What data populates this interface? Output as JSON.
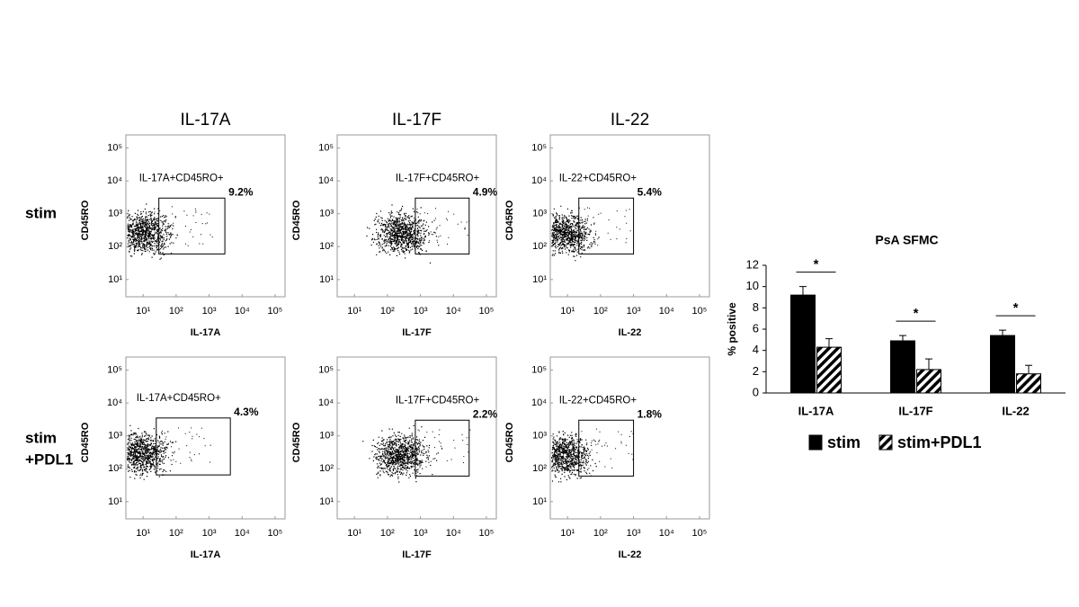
{
  "row_labels": [
    [
      "stim"
    ],
    [
      "stim",
      "+PDL1"
    ]
  ],
  "chart_data": [
    {
      "type": "flow",
      "title": "IL-17A",
      "xlabel": "IL-17A",
      "ylabel": "CD45RO",
      "log_scale": true,
      "xlim": [
        3,
        200000
      ],
      "ylim": [
        3,
        250000
      ],
      "xticks": [
        {
          "value": 10,
          "label": "10¹"
        },
        {
          "value": 100,
          "label": "10²"
        },
        {
          "value": 1000,
          "label": "10³"
        },
        {
          "value": 10000,
          "label": "10⁴"
        },
        {
          "value": 100000,
          "label": "10⁵"
        }
      ],
      "yticks": [
        {
          "value": 10,
          "label": "10¹"
        },
        {
          "value": 100,
          "label": "10²"
        },
        {
          "value": 1000,
          "label": "10³"
        },
        {
          "value": 10000,
          "label": "10⁴"
        },
        {
          "value": 100000,
          "label": "10⁵"
        }
      ],
      "gate_label": "IL-17A+CD45RO+",
      "gate_x": [
        30,
        3000
      ],
      "gate_y": [
        60,
        3000
      ],
      "values": [
        9.2
      ],
      "value_labels": [
        "9.2%"
      ]
    },
    {
      "type": "flow",
      "title": "IL-17F",
      "xlabel": "IL-17F",
      "ylabel": "CD45RO",
      "log_scale": true,
      "xlim": [
        3,
        200000
      ],
      "ylim": [
        3,
        250000
      ],
      "xticks": [
        {
          "value": 10,
          "label": "10¹"
        },
        {
          "value": 100,
          "label": "10²"
        },
        {
          "value": 1000,
          "label": "10³"
        },
        {
          "value": 10000,
          "label": "10⁴"
        },
        {
          "value": 100000,
          "label": "10⁵"
        }
      ],
      "yticks": [
        {
          "value": 10,
          "label": "10¹"
        },
        {
          "value": 100,
          "label": "10²"
        },
        {
          "value": 1000,
          "label": "10³"
        },
        {
          "value": 10000,
          "label": "10⁴"
        },
        {
          "value": 100000,
          "label": "10⁵"
        }
      ],
      "gate_label": "IL-17F+CD45RO+",
      "gate_x": [
        700,
        30000
      ],
      "gate_y": [
        60,
        3000
      ],
      "values": [
        4.9
      ],
      "value_labels": [
        "4.9%"
      ]
    },
    {
      "type": "flow",
      "title": "IL-22",
      "xlabel": "IL-22",
      "ylabel": "CD45RO",
      "log_scale": true,
      "xlim": [
        3,
        200000
      ],
      "ylim": [
        3,
        250000
      ],
      "xticks": [
        {
          "value": 10,
          "label": "10¹"
        },
        {
          "value": 100,
          "label": "10²"
        },
        {
          "value": 1000,
          "label": "10³"
        },
        {
          "value": 10000,
          "label": "10⁴"
        },
        {
          "value": 100000,
          "label": "10⁵"
        }
      ],
      "yticks": [
        {
          "value": 10,
          "label": "10¹"
        },
        {
          "value": 100,
          "label": "10²"
        },
        {
          "value": 1000,
          "label": "10³"
        },
        {
          "value": 10000,
          "label": "10⁴"
        },
        {
          "value": 100000,
          "label": "10⁵"
        }
      ],
      "gate_label": "IL-22+CD45RO+",
      "gate_x": [
        22,
        1000
      ],
      "gate_y": [
        60,
        3000
      ],
      "values": [
        5.4
      ],
      "value_labels": [
        "5.4%"
      ]
    },
    {
      "type": "flow",
      "xlabel": "IL-17A",
      "ylabel": "CD45RO",
      "log_scale": true,
      "xlim": [
        3,
        200000
      ],
      "ylim": [
        3,
        250000
      ],
      "xticks": [
        {
          "value": 10,
          "label": "10¹"
        },
        {
          "value": 100,
          "label": "10²"
        },
        {
          "value": 1000,
          "label": "10³"
        },
        {
          "value": 10000,
          "label": "10⁴"
        },
        {
          "value": 100000,
          "label": "10⁵"
        }
      ],
      "yticks": [
        {
          "value": 10,
          "label": "10¹"
        },
        {
          "value": 100,
          "label": "10²"
        },
        {
          "value": 1000,
          "label": "10³"
        },
        {
          "value": 10000,
          "label": "10⁴"
        },
        {
          "value": 100000,
          "label": "10⁵"
        }
      ],
      "gate_label": "IL-17A+CD45RO+",
      "gate_x": [
        25,
        4400
      ],
      "gate_y": [
        65,
        3500
      ],
      "values": [
        4.3
      ],
      "value_labels": [
        "4.3%"
      ]
    },
    {
      "type": "flow",
      "xlabel": "IL-17F",
      "ylabel": "CD45RO",
      "log_scale": true,
      "xlim": [
        3,
        200000
      ],
      "ylim": [
        3,
        250000
      ],
      "xticks": [
        {
          "value": 10,
          "label": "10¹"
        },
        {
          "value": 100,
          "label": "10²"
        },
        {
          "value": 1000,
          "label": "10³"
        },
        {
          "value": 10000,
          "label": "10⁴"
        },
        {
          "value": 100000,
          "label": "10⁵"
        }
      ],
      "yticks": [
        {
          "value": 10,
          "label": "10¹"
        },
        {
          "value": 100,
          "label": "10²"
        },
        {
          "value": 1000,
          "label": "10³"
        },
        {
          "value": 10000,
          "label": "10⁴"
        },
        {
          "value": 100000,
          "label": "10⁵"
        }
      ],
      "gate_label": "IL-17F+CD45RO+",
      "gate_x": [
        700,
        30000
      ],
      "gate_y": [
        60,
        3000
      ],
      "values": [
        2.2
      ],
      "value_labels": [
        "2.2%"
      ]
    },
    {
      "type": "flow",
      "xlabel": "IL-22",
      "ylabel": "CD45RO",
      "log_scale": true,
      "xlim": [
        3,
        200000
      ],
      "ylim": [
        3,
        250000
      ],
      "xticks": [
        {
          "value": 10,
          "label": "10¹"
        },
        {
          "value": 100,
          "label": "10²"
        },
        {
          "value": 1000,
          "label": "10³"
        },
        {
          "value": 10000,
          "label": "10⁴"
        },
        {
          "value": 100000,
          "label": "10⁵"
        }
      ],
      "yticks": [
        {
          "value": 10,
          "label": "10¹"
        },
        {
          "value": 100,
          "label": "10²"
        },
        {
          "value": 1000,
          "label": "10³"
        },
        {
          "value": 10000,
          "label": "10⁴"
        },
        {
          "value": 100000,
          "label": "10⁵"
        }
      ],
      "gate_label": "IL-22+CD45RO+",
      "gate_x": [
        22,
        1000
      ],
      "gate_y": [
        60,
        3000
      ],
      "values": [
        1.8
      ],
      "value_labels": [
        "1.8%"
      ]
    },
    {
      "type": "bar",
      "title": "PsA SFMC",
      "ylabel": "% positive",
      "categories": [
        "IL-17A",
        "IL-17F",
        "IL-22"
      ],
      "series": [
        {
          "name": "stim",
          "color": "#000000",
          "pattern": "solid",
          "values": [
            9.2,
            4.9,
            5.4
          ],
          "errors": [
            0.8,
            0.5,
            0.5
          ]
        },
        {
          "name": "stim+PDL1",
          "color": "#000000",
          "pattern": "hatch",
          "values": [
            4.3,
            2.2,
            1.8
          ],
          "errors": [
            0.8,
            1.0,
            0.8
          ]
        }
      ],
      "annotations": [
        "*",
        "*",
        "*"
      ],
      "ylim": [
        0,
        12
      ],
      "yticks": [
        0,
        2,
        4,
        6,
        8,
        10,
        12
      ],
      "grid": false
    }
  ]
}
